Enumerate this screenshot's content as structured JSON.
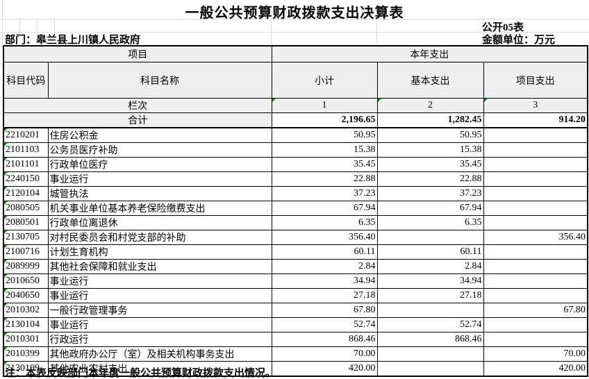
{
  "title": "一般公共预算财政拨款支出决算表",
  "meta": {
    "table_code": "公开05表",
    "department": "部门：皋兰县上川镇人民政府",
    "unit": "金额单位：万元"
  },
  "table": {
    "header": {
      "project_group": "项目",
      "year_group": "本年支出",
      "code": "科目代码",
      "name": "科目名称",
      "subtotal": "小计",
      "basic": "基本支出",
      "project": "项目支出",
      "lanci": "栏次",
      "col_nums": [
        "1",
        "2",
        "3"
      ]
    },
    "total": {
      "label": "合计",
      "subtotal": "2,196.65",
      "basic": "1,282.45",
      "project": "914.20"
    },
    "rows": [
      {
        "code": "2210201",
        "name": "住房公积金",
        "subtotal": "50.95",
        "basic": "50.95",
        "project": ""
      },
      {
        "code": "2101103",
        "name": "公务员医疗补助",
        "subtotal": "15.38",
        "basic": "15.38",
        "project": ""
      },
      {
        "code": "2101101",
        "name": "行政单位医疗",
        "subtotal": "35.45",
        "basic": "35.45",
        "project": ""
      },
      {
        "code": "2240150",
        "name": "事业运行",
        "subtotal": "22.88",
        "basic": "22.88",
        "project": ""
      },
      {
        "code": "2120104",
        "name": "城管执法",
        "subtotal": "37.23",
        "basic": "37.23",
        "project": ""
      },
      {
        "code": "2080505",
        "name": "机关事业单位基本养老保险缴费支出",
        "subtotal": "67.94",
        "basic": "67.94",
        "project": ""
      },
      {
        "code": "2080501",
        "name": "行政单位离退休",
        "subtotal": "6.35",
        "basic": "6.35",
        "project": ""
      },
      {
        "code": "2130705",
        "name": "对村民委员会和村党支部的补助",
        "subtotal": "356.40",
        "basic": "",
        "project": "356.40"
      },
      {
        "code": "2100716",
        "name": "计划生育机构",
        "subtotal": "60.11",
        "basic": "60.11",
        "project": ""
      },
      {
        "code": "2089999",
        "name": "其他社会保障和就业支出",
        "subtotal": "2.84",
        "basic": "2.84",
        "project": ""
      },
      {
        "code": "2010650",
        "name": "事业运行",
        "subtotal": "34.94",
        "basic": "34.94",
        "project": ""
      },
      {
        "code": "2040650",
        "name": "事业运行",
        "subtotal": "27.18",
        "basic": "27.18",
        "project": ""
      },
      {
        "code": "2010302",
        "name": "一般行政管理事务",
        "subtotal": "67.80",
        "basic": "",
        "project": "67.80"
      },
      {
        "code": "2130104",
        "name": "事业运行",
        "subtotal": "52.74",
        "basic": "52.74",
        "project": ""
      },
      {
        "code": "2010301",
        "name": "行政运行",
        "subtotal": "868.46",
        "basic": "868.46",
        "project": ""
      },
      {
        "code": "2010399",
        "name": "其他政府办公厅（室）及相关机构事务支出",
        "subtotal": "70.00",
        "basic": "",
        "project": "70.00"
      },
      {
        "code": "2130199",
        "name": "其他农业农村支出",
        "subtotal": "420.00",
        "basic": "",
        "project": "420.00"
      }
    ]
  },
  "note": "注：本表反映部门本年度一般公共预算财政拨款支出情况。",
  "colors": {
    "header_fill": "#efefef",
    "border": "#000000",
    "error_triangle": "#1f8a1f",
    "gridline": "#d9d9d9"
  }
}
